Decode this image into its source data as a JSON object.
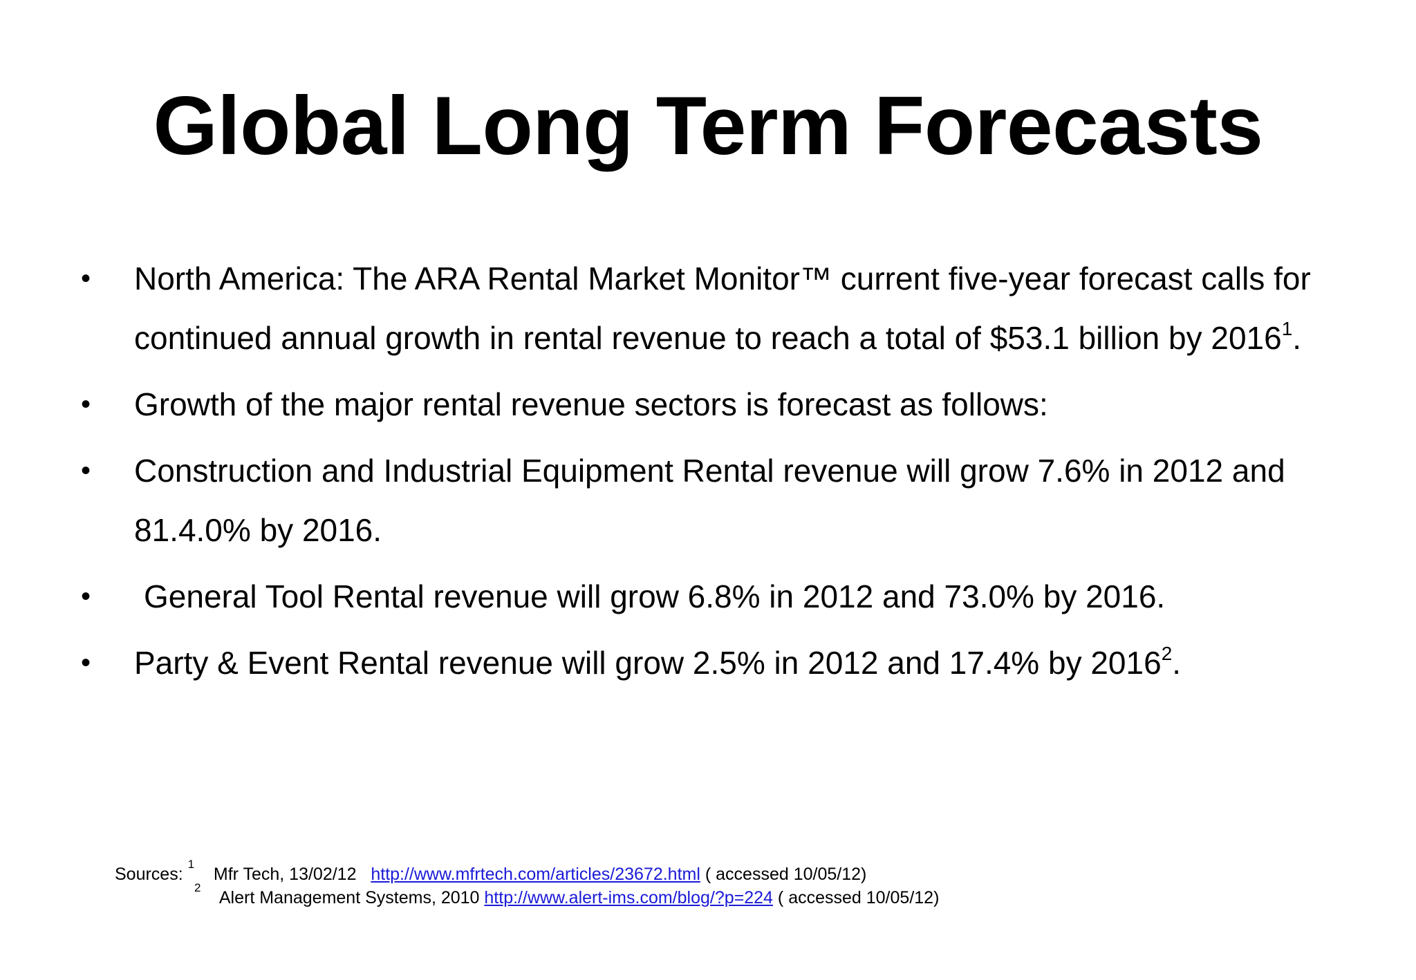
{
  "title": "Global Long Term Forecasts",
  "bullets": [
    {
      "symbol": "•",
      "text": "North America: The ARA Rental Market Monitor™ current five-year forecast calls for continued annual growth in rental revenue to reach a total of $53.1 billion by 2016",
      "footnote": "1",
      "tail": "."
    },
    {
      "symbol": "•",
      "text": "Growth of the major rental revenue sectors is forecast as follows:"
    },
    {
      "symbol": "•",
      "text": "Construction and Industrial Equipment Rental revenue will grow 7.6% in 2012 and 81.4.0% by 2016."
    },
    {
      "symbol": "•",
      "text": "General Tool Rental revenue will grow 6.8% in 2012 and 73.0% by 2016."
    },
    {
      "symbol": "•",
      "text": "Party & Event Rental revenue will grow 2.5% in 2012 and 17.4% by 2016",
      "footnote": "2",
      "tail": "."
    }
  ],
  "sources": {
    "label": "Sources:",
    "items": [
      {
        "number": "1",
        "citation": "Mfr Tech, 13/02/12",
        "link": "http://www.mfrtech.com/articles/23672.html",
        "accessed": "( accessed 10/05/12)"
      },
      {
        "number": "2",
        "citation": "Alert Management Systems, 2010",
        "link": "http://www.alert-ims.com/blog/?p=224",
        "accessed": "( accessed 10/05/12)"
      }
    ]
  },
  "colors": {
    "background": "#ffffff",
    "text": "#000000",
    "link": "#1a1ad8"
  }
}
